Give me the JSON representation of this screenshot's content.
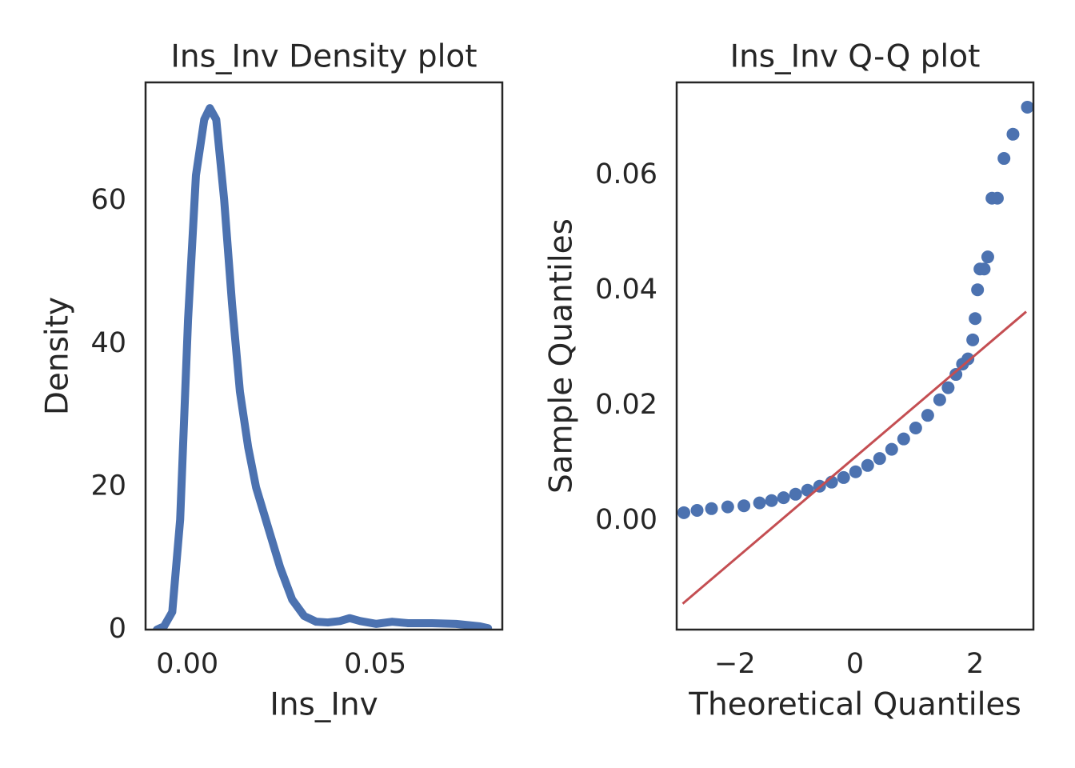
{
  "chart_data": [
    {
      "type": "line",
      "title": "Ins_Inv Density plot",
      "xlabel": "Ins_Inv",
      "ylabel": "Density",
      "color": "#4c72b0",
      "x": [
        -0.0081,
        -0.0062,
        -0.004,
        -0.0019,
        0.0002,
        0.0023,
        0.0045,
        0.006,
        0.0077,
        0.0098,
        0.0119,
        0.014,
        0.0162,
        0.0183,
        0.0215,
        0.0247,
        0.0279,
        0.0311,
        0.0343,
        0.0374,
        0.0406,
        0.0432,
        0.046,
        0.0502,
        0.0545,
        0.0587,
        0.0651,
        0.0715,
        0.0779,
        0.08
      ],
      "values": [
        0,
        0.45,
        2.47,
        15.4,
        43.4,
        63.6,
        71.4,
        73.0,
        71.4,
        60.2,
        45.6,
        33.3,
        25.5,
        19.9,
        14.3,
        8.7,
        4.2,
        1.9,
        1.1,
        1.0,
        1.2,
        1.6,
        1.2,
        0.8,
        1.1,
        0.9,
        0.9,
        0.8,
        0.45,
        0.2
      ],
      "xlim": [
        -0.0111,
        0.0838
      ],
      "ylim": [
        0,
        76.6
      ],
      "xticks": [
        {
          "value": 0,
          "label": "0.00"
        },
        {
          "value": 0.05,
          "label": "0.05"
        }
      ],
      "yticks": [
        0,
        20,
        40,
        60
      ]
    },
    {
      "type": "scatter",
      "title": "Ins_Inv Q-Q plot",
      "xlabel": "Theoretical Quantiles",
      "ylabel": "Sample Quantiles",
      "color": "#4c72b0",
      "x": [
        -2.85,
        -2.63,
        -2.39,
        -2.12,
        -1.85,
        -1.59,
        -1.39,
        -1.19,
        -0.99,
        -0.79,
        -0.59,
        -0.39,
        -0.19,
        0.01,
        0.21,
        0.41,
        0.61,
        0.81,
        1.01,
        1.21,
        1.41,
        1.55,
        1.68,
        1.79,
        1.88,
        1.96,
        2.0,
        2.04,
        2.08,
        2.15,
        2.21,
        2.28,
        2.37,
        2.48,
        2.63,
        2.87
      ],
      "values": [
        0.0014,
        0.0018,
        0.0021,
        0.0024,
        0.0026,
        0.0031,
        0.0035,
        0.004,
        0.0046,
        0.0053,
        0.006,
        0.0067,
        0.0075,
        0.0085,
        0.0096,
        0.0108,
        0.0124,
        0.0142,
        0.0161,
        0.0183,
        0.021,
        0.0231,
        0.0254,
        0.0272,
        0.0281,
        0.0314,
        0.0351,
        0.0401,
        0.0437,
        0.0437,
        0.0458,
        0.056,
        0.056,
        0.0629,
        0.0671,
        0.0718
      ],
      "reference_line": {
        "color": "#c44e52",
        "x": [
          -2.87,
          2.85
        ],
        "values": [
          -0.0144,
          0.0363
        ]
      },
      "xlim": [
        -2.97,
        2.97
      ],
      "ylim": [
        -0.0189,
        0.0761
      ],
      "xticks": [
        {
          "value": -2,
          "label": "−2"
        },
        0,
        2
      ],
      "yticks": [
        {
          "value": 0,
          "label": "0.00"
        },
        {
          "value": 0.02,
          "label": "0.02"
        },
        {
          "value": 0.04,
          "label": "0.04"
        },
        {
          "value": 0.06,
          "label": "0.06"
        }
      ]
    }
  ]
}
